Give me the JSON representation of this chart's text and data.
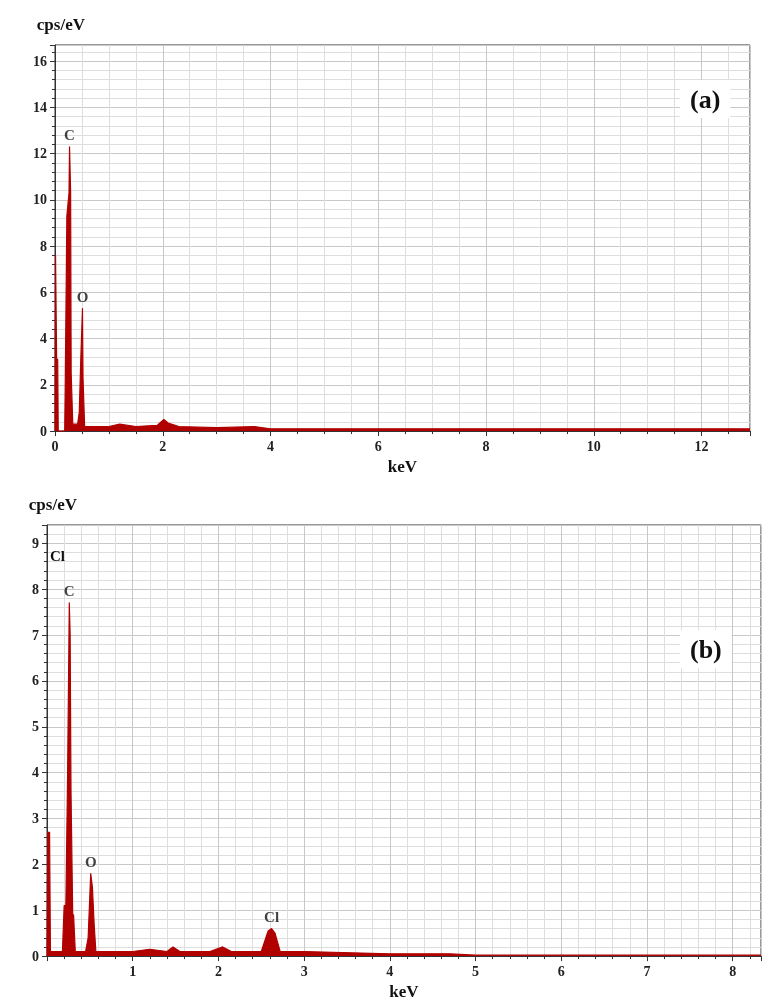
{
  "chart_data": [
    {
      "type": "area",
      "xlabel": "keV",
      "ylabel": "cps/eV",
      "xlim": [
        0,
        12.9
      ],
      "ylim": [
        0,
        16.7
      ],
      "xticks": [
        0,
        2,
        4,
        6,
        8,
        10,
        12
      ],
      "yticks": [
        0,
        2,
        4,
        6,
        8,
        10,
        12,
        14,
        16
      ],
      "grid": true,
      "annotations": [
        "(a)",
        {
          "text": "C",
          "x": 0.27,
          "y": 12.3
        },
        {
          "text": "O",
          "x": 0.51,
          "y": 5.3
        }
      ],
      "series": [
        {
          "color": "#b00000",
          "x": [
            0,
            0.01,
            0.03,
            0.05,
            0.06,
            0.18,
            0.19,
            0.22,
            0.26,
            0.27,
            0.29,
            0.3,
            0.33,
            0.42,
            0.45,
            0.48,
            0.51,
            0.52,
            0.55,
            1.0,
            1.2,
            1.5,
            1.9,
            2.02,
            2.1,
            2.3,
            3.0,
            3.7,
            4.0,
            6.0,
            8.0,
            10.0,
            12.0,
            12.9
          ],
          "values": [
            0,
            7.6,
            3.1,
            3.1,
            0,
            0,
            2,
            9.3,
            10.3,
            12.3,
            10.3,
            2.5,
            0.3,
            0.3,
            0.8,
            3.2,
            5.3,
            2.3,
            0.2,
            0.2,
            0.3,
            0.2,
            0.25,
            0.5,
            0.35,
            0.2,
            0.15,
            0.2,
            0.1,
            0.1,
            0.1,
            0.1,
            0.1,
            0.1
          ]
        }
      ]
    },
    {
      "type": "area",
      "xlabel": "keV",
      "ylabel": "cps/eV",
      "xlim": [
        0,
        8.33
      ],
      "ylim": [
        0,
        9.4
      ],
      "xticks": [
        1,
        2,
        3,
        4,
        5,
        6,
        7,
        8
      ],
      "yticks": [
        0,
        1,
        2,
        3,
        4,
        5,
        6,
        7,
        8,
        9
      ],
      "grid": true,
      "annotations": [
        "(b)",
        "Cl",
        {
          "text": "C",
          "x": 0.26,
          "y": 7.7
        },
        {
          "text": "O",
          "x": 0.51,
          "y": 1.8
        },
        {
          "text": "Cl",
          "x": 2.62,
          "y": 0.6
        }
      ],
      "series": [
        {
          "color": "#b00000",
          "x": [
            0,
            0.01,
            0.03,
            0.04,
            0.18,
            0.2,
            0.22,
            0.24,
            0.26,
            0.27,
            0.28,
            0.3,
            0.31,
            0.33,
            0.45,
            0.48,
            0.51,
            0.53,
            0.55,
            0.57,
            0.6,
            1.0,
            1.2,
            1.4,
            1.47,
            1.55,
            1.9,
            2.05,
            2.15,
            2.5,
            2.58,
            2.62,
            2.66,
            2.72,
            3.0,
            4.0,
            4.7,
            5.0,
            6.0,
            7.0,
            8.0,
            8.33
          ],
          "values": [
            0,
            2.7,
            2.7,
            0.1,
            0.1,
            1.1,
            1.1,
            3.9,
            7.7,
            7.0,
            3.6,
            0.9,
            0.9,
            0.1,
            0.1,
            0.4,
            1.8,
            1.5,
            0.7,
            0.1,
            0.1,
            0.1,
            0.15,
            0.1,
            0.2,
            0.1,
            0.1,
            0.2,
            0.1,
            0.1,
            0.55,
            0.6,
            0.5,
            0.1,
            0.1,
            0.05,
            0.05,
            0.02,
            0.02,
            0.02,
            0.02,
            0.02
          ]
        }
      ]
    }
  ]
}
